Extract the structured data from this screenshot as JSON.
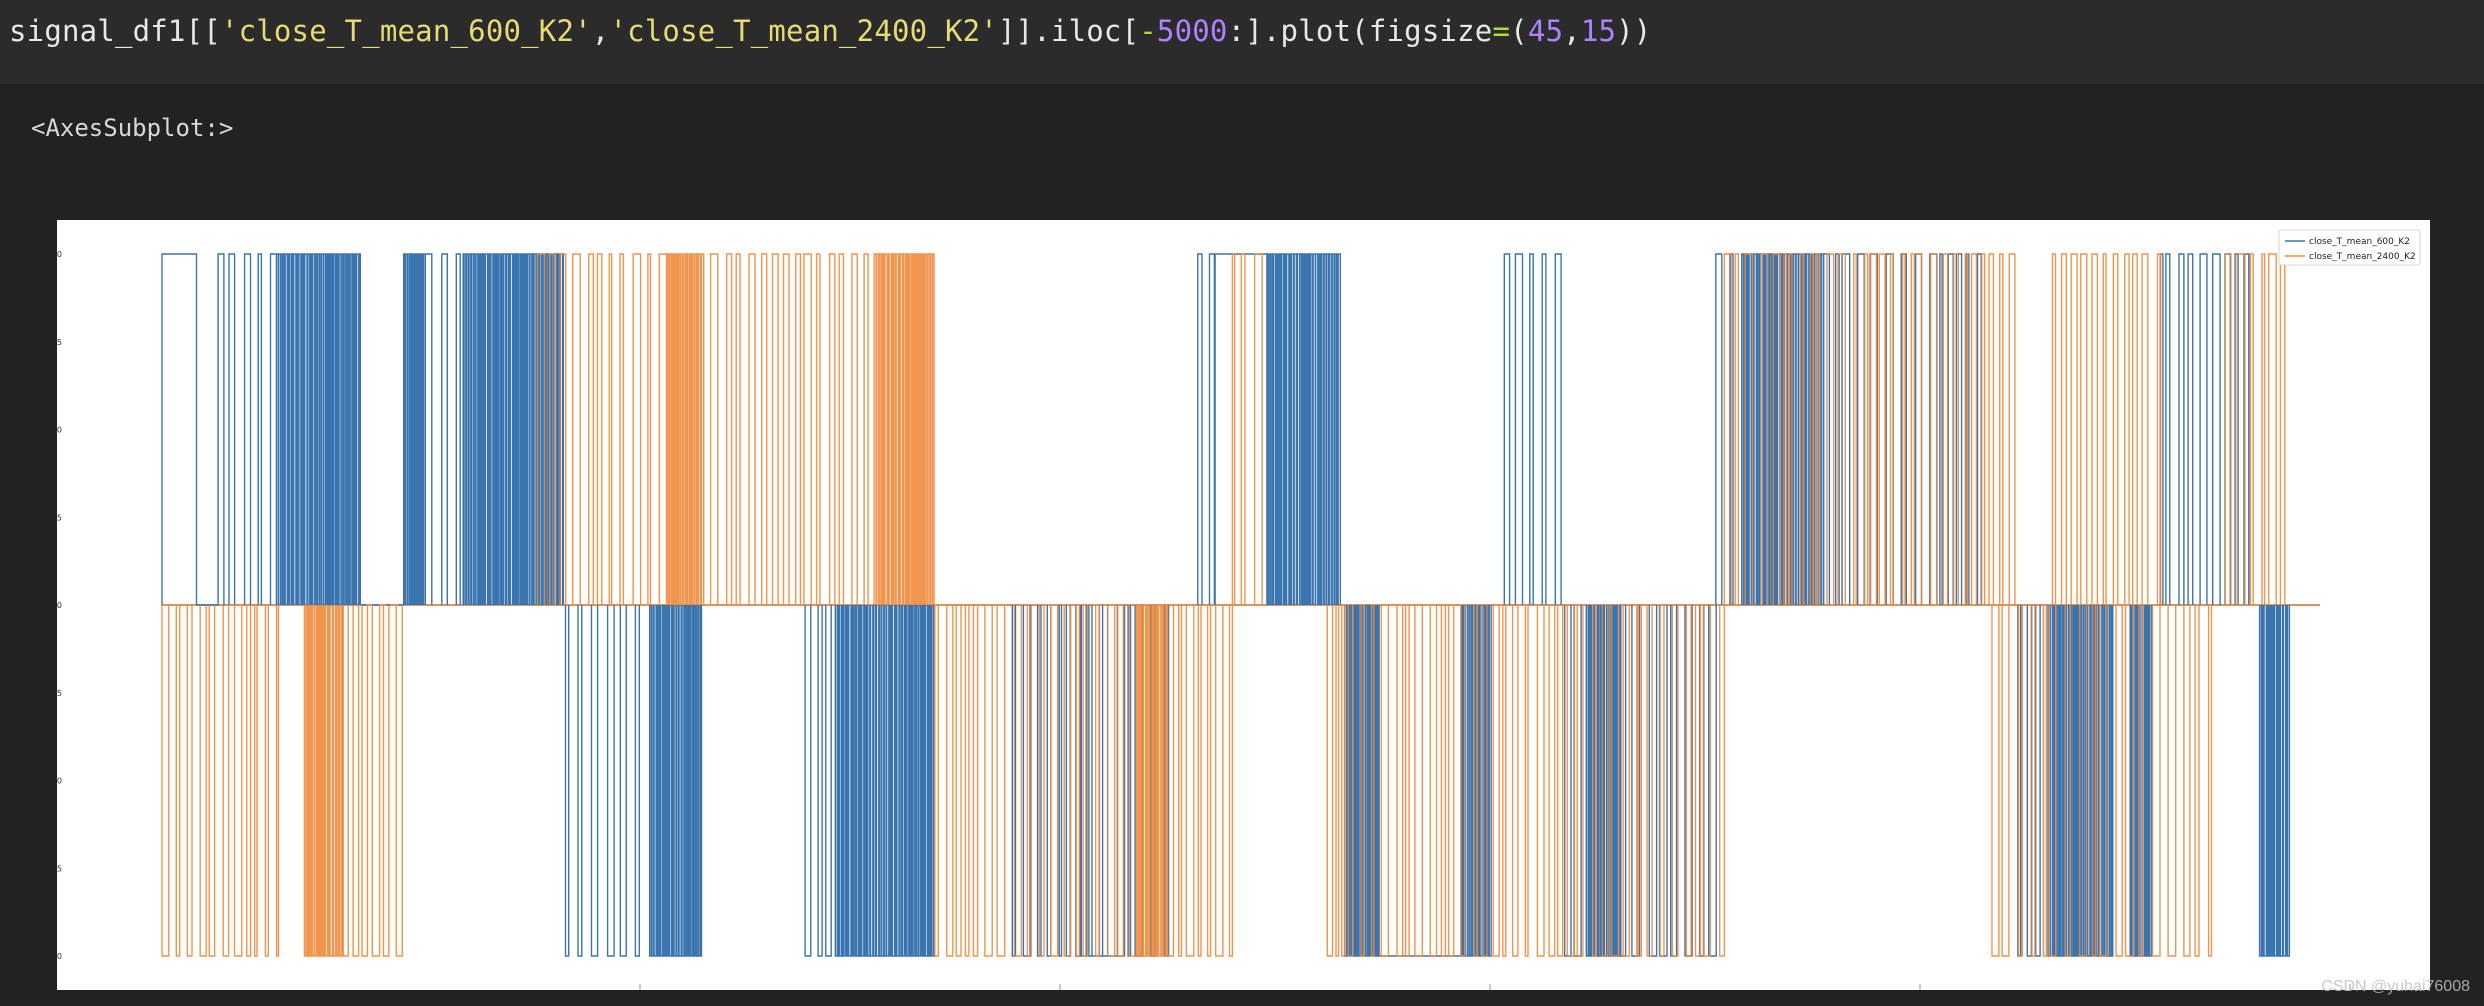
{
  "cell": {
    "code_tokens": [
      {
        "t": "signal_df1[[",
        "c": "plain"
      },
      {
        "t": "'close_T_mean_600_K2'",
        "c": "str"
      },
      {
        "t": ",",
        "c": "plain"
      },
      {
        "t": "'close_T_mean_2400_K2'",
        "c": "str"
      },
      {
        "t": "]].iloc[",
        "c": "plain"
      },
      {
        "t": "-",
        "c": "op"
      },
      {
        "t": "5000",
        "c": "num"
      },
      {
        "t": ":].plot(figsize",
        "c": "plain"
      },
      {
        "t": "=",
        "c": "op"
      },
      {
        "t": "(",
        "c": "plain"
      },
      {
        "t": "45",
        "c": "num"
      },
      {
        "t": ",",
        "c": "plain"
      },
      {
        "t": "15",
        "c": "num"
      },
      {
        "t": "))",
        "c": "plain"
      }
    ],
    "output_text": "<AxesSubplot:>"
  },
  "watermark": "CSDN @yuhai76008",
  "chart_data": {
    "type": "line",
    "title": "",
    "xlabel": "",
    "ylabel": "",
    "ylim": [
      -1.0,
      1.0
    ],
    "y_ticks": [
      "1.00",
      "0.75",
      "0.50",
      "0.25",
      "0.00",
      "-0.25",
      "-0.50",
      "-0.75",
      "-1.00"
    ],
    "x_range": [
      0,
      5000
    ],
    "legend_position": "top-right",
    "series": [
      {
        "name": "close_T_mean_600_K2",
        "color": "#3b75af",
        "segments": [
          {
            "start": 0,
            "end": 80,
            "value": 1,
            "mode": "solid"
          },
          {
            "start": 80,
            "end": 130,
            "value": 0,
            "mode": "solid"
          },
          {
            "start": 130,
            "end": 265,
            "value": 1,
            "mode": "sparse"
          },
          {
            "start": 265,
            "end": 460,
            "value": 1,
            "mode": "dense"
          },
          {
            "start": 460,
            "end": 560,
            "value": 0,
            "mode": "sparse"
          },
          {
            "start": 560,
            "end": 610,
            "value": 1,
            "mode": "dense"
          },
          {
            "start": 610,
            "end": 700,
            "value": 1,
            "mode": "sparse"
          },
          {
            "start": 700,
            "end": 930,
            "value": 1,
            "mode": "dense"
          },
          {
            "start": 935,
            "end": 1125,
            "value": -1,
            "mode": "sparse"
          },
          {
            "start": 1130,
            "end": 1250,
            "value": -1,
            "mode": "dense"
          },
          {
            "start": 1490,
            "end": 1560,
            "value": -1,
            "mode": "sparse"
          },
          {
            "start": 1560,
            "end": 1790,
            "value": -1,
            "mode": "dense"
          },
          {
            "start": 1970,
            "end": 2340,
            "value": -1,
            "mode": "sparse"
          },
          {
            "start": 2130,
            "end": 2230,
            "value": -1,
            "mode": "solid"
          },
          {
            "start": 2400,
            "end": 2440,
            "value": 1,
            "mode": "sparse"
          },
          {
            "start": 2440,
            "end": 2560,
            "value": 1,
            "mode": "solid"
          },
          {
            "start": 2560,
            "end": 2730,
            "value": 1,
            "mode": "dense"
          },
          {
            "start": 2740,
            "end": 2820,
            "value": -1,
            "mode": "dense"
          },
          {
            "start": 2820,
            "end": 3010,
            "value": -1,
            "mode": "solid"
          },
          {
            "start": 3010,
            "end": 3080,
            "value": -1,
            "mode": "dense"
          },
          {
            "start": 3110,
            "end": 3250,
            "value": 1,
            "mode": "sparse"
          },
          {
            "start": 3250,
            "end": 3300,
            "value": -1,
            "mode": "sparse"
          },
          {
            "start": 3300,
            "end": 3380,
            "value": -1,
            "mode": "dense"
          },
          {
            "start": 3380,
            "end": 3610,
            "value": -1,
            "mode": "sparse"
          },
          {
            "start": 3600,
            "end": 3640,
            "value": 1,
            "mode": "sparse"
          },
          {
            "start": 3660,
            "end": 3850,
            "value": 1,
            "mode": "dense"
          },
          {
            "start": 3850,
            "end": 4220,
            "value": 1,
            "mode": "sparse"
          },
          {
            "start": 4300,
            "end": 4380,
            "value": -1,
            "mode": "sparse"
          },
          {
            "start": 4380,
            "end": 4520,
            "value": -1,
            "mode": "dense"
          },
          {
            "start": 4560,
            "end": 4610,
            "value": -1,
            "mode": "dense"
          },
          {
            "start": 4630,
            "end": 4780,
            "value": 1,
            "mode": "sparse"
          },
          {
            "start": 4780,
            "end": 4840,
            "value": 1,
            "mode": "sparse"
          },
          {
            "start": 4860,
            "end": 4930,
            "value": -1,
            "mode": "dense"
          }
        ]
      },
      {
        "name": "close_T_mean_2400_K2",
        "color": "#f0883a",
        "segments": [
          {
            "start": 0,
            "end": 270,
            "value": -1,
            "mode": "sparse"
          },
          {
            "start": 330,
            "end": 420,
            "value": -1,
            "mode": "dense"
          },
          {
            "start": 420,
            "end": 570,
            "value": -1,
            "mode": "sparse"
          },
          {
            "start": 870,
            "end": 1170,
            "value": 1,
            "mode": "sparse"
          },
          {
            "start": 1170,
            "end": 1250,
            "value": 1,
            "mode": "dense"
          },
          {
            "start": 1250,
            "end": 1440,
            "value": 1,
            "mode": "sparse"
          },
          {
            "start": 1440,
            "end": 1650,
            "value": 1,
            "mode": "sparse"
          },
          {
            "start": 1650,
            "end": 1790,
            "value": 1,
            "mode": "dense"
          },
          {
            "start": 1790,
            "end": 2260,
            "value": -1,
            "mode": "sparse"
          },
          {
            "start": 2260,
            "end": 2330,
            "value": -1,
            "mode": "dense"
          },
          {
            "start": 2330,
            "end": 2480,
            "value": -1,
            "mode": "sparse"
          },
          {
            "start": 2480,
            "end": 2560,
            "value": 1,
            "mode": "sparse"
          },
          {
            "start": 2700,
            "end": 3420,
            "value": -1,
            "mode": "sparse"
          },
          {
            "start": 3420,
            "end": 3620,
            "value": -1,
            "mode": "sparse"
          },
          {
            "start": 3620,
            "end": 4060,
            "value": 1,
            "mode": "sparse"
          },
          {
            "start": 4060,
            "end": 4300,
            "value": 1,
            "mode": "sparse"
          },
          {
            "start": 4240,
            "end": 4760,
            "value": -1,
            "mode": "sparse"
          },
          {
            "start": 4380,
            "end": 4640,
            "value": 1,
            "mode": "sparse"
          },
          {
            "start": 4780,
            "end": 4930,
            "value": 1,
            "mode": "sparse"
          }
        ]
      }
    ]
  }
}
